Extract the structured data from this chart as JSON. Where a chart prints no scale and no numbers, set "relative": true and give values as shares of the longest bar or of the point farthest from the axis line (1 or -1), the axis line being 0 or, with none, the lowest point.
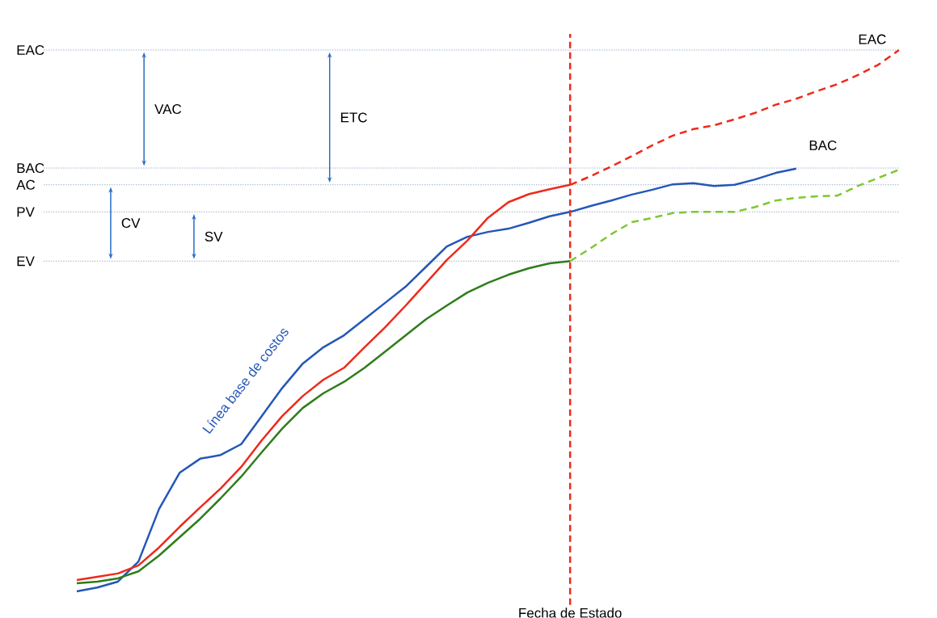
{
  "chart_data": {
    "type": "line",
    "relative": true,
    "categories": [
      null,
      null,
      null,
      null,
      null,
      null,
      null,
      null,
      null,
      null,
      null,
      null,
      null,
      null,
      null,
      null,
      null,
      null,
      null,
      null,
      null,
      null,
      null,
      null,
      null,
      null,
      null,
      null,
      null,
      null,
      null,
      null,
      null,
      null,
      null,
      null,
      null,
      null,
      null,
      null,
      null
    ],
    "series": [
      {
        "name": "Línea base de costos",
        "color": "#2457b8",
        "line_style": "solid",
        "values": [
          0,
          0.007,
          0.018,
          0.055,
          0.152,
          0.219,
          0.245,
          0.252,
          0.272,
          0.324,
          0.376,
          0.421,
          0.451,
          0.473,
          0.503,
          0.533,
          0.563,
          0.6,
          0.637,
          0.655,
          0.664,
          0.67,
          0.681,
          0.693,
          0.701,
          0.712,
          0.722,
          0.733,
          0.742,
          0.752,
          0.754,
          0.749,
          0.751,
          0.761,
          0.773,
          0.781,
          null,
          null,
          null,
          null,
          null
        ]
      },
      {
        "color": "#ee2a1b",
        "line_style": "solid",
        "values": [
          0.021,
          0.027,
          0.033,
          0.048,
          0.081,
          0.119,
          0.155,
          0.19,
          0.23,
          0.279,
          0.324,
          0.361,
          0.391,
          0.413,
          0.451,
          0.488,
          0.528,
          0.57,
          0.612,
          0.648,
          0.69,
          0.719,
          0.734,
          0.743,
          0.751,
          null,
          null,
          null,
          null,
          null,
          null,
          null,
          null,
          null,
          null,
          null,
          null,
          null,
          null,
          null,
          null
        ]
      },
      {
        "color": "#ee2a1b",
        "line_style": "dashed",
        "values": [
          null,
          null,
          null,
          null,
          null,
          null,
          null,
          null,
          null,
          null,
          null,
          null,
          null,
          null,
          null,
          null,
          null,
          null,
          null,
          null,
          null,
          null,
          null,
          null,
          0.751,
          0.767,
          0.785,
          0.804,
          0.824,
          0.842,
          0.854,
          0.861,
          0.872,
          0.884,
          0.899,
          0.91,
          0.924,
          0.937,
          0.954,
          0.973,
          1
        ]
      },
      {
        "color": "#2e7d1a",
        "line_style": "solid",
        "values": [
          0.015,
          0.018,
          0.024,
          0.037,
          0.066,
          0.1,
          0.134,
          0.172,
          0.212,
          0.257,
          0.301,
          0.339,
          0.366,
          0.387,
          0.413,
          0.443,
          0.473,
          0.503,
          0.528,
          0.552,
          0.57,
          0.585,
          0.597,
          0.606,
          0.61,
          null,
          null,
          null,
          null,
          null,
          null,
          null,
          null,
          null,
          null,
          null,
          null,
          null,
          null,
          null,
          null
        ]
      },
      {
        "color": "#7dc832",
        "line_style": "dashed",
        "values": [
          null,
          null,
          null,
          null,
          null,
          null,
          null,
          null,
          null,
          null,
          null,
          null,
          null,
          null,
          null,
          null,
          null,
          null,
          null,
          null,
          null,
          null,
          null,
          null,
          0.61,
          0.634,
          0.66,
          0.682,
          0.69,
          0.699,
          0.701,
          0.701,
          0.701,
          0.71,
          0.722,
          0.727,
          0.73,
          0.731,
          0.749,
          0.764,
          0.779
        ]
      }
    ],
    "ref_lines": [
      {
        "axis": "y",
        "value": 1,
        "label": "EAC",
        "color": "#6f8fb5",
        "line_style": "dotted"
      },
      {
        "axis": "y",
        "value": 0.782,
        "label": "BAC",
        "color": "#6f8fb5",
        "line_style": "dotted"
      },
      {
        "axis": "y",
        "value": 0.751,
        "label": "AC",
        "color": "#6f8fb5",
        "line_style": "dotted"
      },
      {
        "axis": "y",
        "value": 0.701,
        "label": "PV",
        "color": "#6f8fb5",
        "line_style": "dotted"
      },
      {
        "axis": "y",
        "value": 0.61,
        "label": "EV",
        "color": "#6f8fb5",
        "line_style": "dotted"
      }
    ],
    "annotations": [
      "VAC",
      "ETC",
      "CV",
      "SV",
      "BAC",
      "EAC",
      "Fecha de Estado"
    ]
  }
}
